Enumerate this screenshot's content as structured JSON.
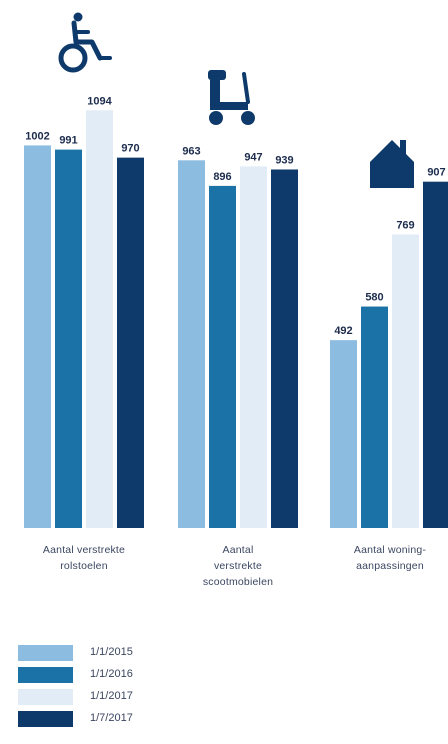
{
  "colors": [
    "#8cbcdf",
    "#1a72a6",
    "#e2ecf6",
    "#0e3a6b"
  ],
  "chart_data": {
    "type": "bar",
    "categories": [
      "Aantal verstrekte rolstoelen",
      "Aantal verstrekte scootmobielen",
      "Aantal woning-aanpassingen"
    ],
    "category_lines": [
      [
        "Aantal verstrekte",
        "rolstoelen"
      ],
      [
        "Aantal",
        "verstrekte",
        "scootmobielen"
      ],
      [
        "Aantal woning-",
        "aanpassingen"
      ]
    ],
    "category_icons": [
      "wheelchair-icon",
      "mobility-scooter-icon",
      "house-icon"
    ],
    "series": [
      {
        "name": "1/1/2015",
        "values": [
          1002,
          963,
          492
        ]
      },
      {
        "name": "1/1/2016",
        "values": [
          991,
          896,
          580
        ]
      },
      {
        "name": "1/1/2017",
        "values": [
          1094,
          947,
          769
        ]
      },
      {
        "name": "1/7/2017",
        "values": [
          970,
          939,
          907
        ]
      }
    ],
    "ylim": [
      0,
      1100
    ],
    "grid": false,
    "legend_position": "bottom-left"
  },
  "legend": {
    "items": [
      {
        "label": "1/1/2015"
      },
      {
        "label": "1/1/2016"
      },
      {
        "label": "1/1/2017"
      },
      {
        "label": "1/7/2017"
      }
    ]
  }
}
